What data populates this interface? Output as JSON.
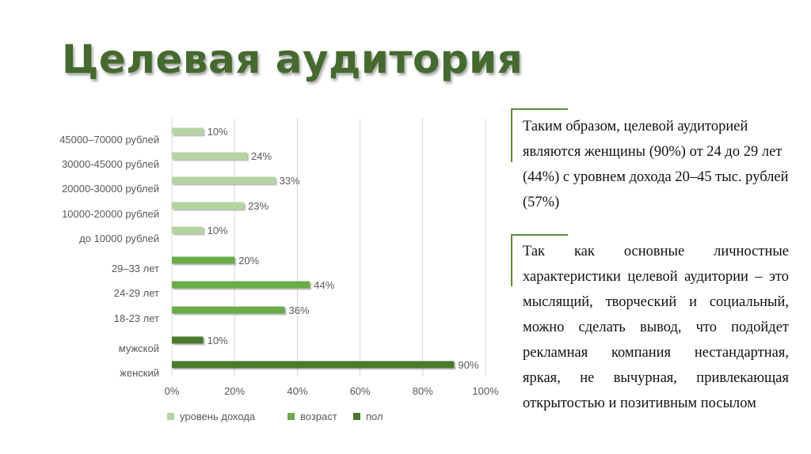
{
  "slide": {
    "title": "Целевая аудитория",
    "summary_text": "Таким образом, целевой аудиторией являются женщины (90%) от 24 до 29 лет (44%) с уровнем дохода 20–45 тыс. рублей (57%)",
    "conclusion_text": "Так как основные личностные характеристики целевой аудитории – это мыслящий, творческий и социальный, можно сделать вывод, что подойдет рекламная компания нестандартная, яркая, не вычурная, привлекающая открытостью и позитивным посылом"
  },
  "colors": {
    "title": "#446a2d",
    "accent_line": "#5b8a3a",
    "income": "#b5d5a0",
    "age": "#6aac4a",
    "gender": "#4a7a2c",
    "grid": "#d9d9d9",
    "label": "#595959"
  },
  "chart_data": {
    "type": "bar",
    "orientation": "horizontal",
    "categories": [
      "45000–70000 рублей",
      "30000-45000 рублей",
      "20000-30000 рублей",
      "10000-20000 рублей",
      "до 10000 рублей",
      "29–33 лет",
      "24-29 лет",
      "18-23 лет",
      "мужской",
      "женский"
    ],
    "values": [
      10,
      24,
      33,
      23,
      10,
      20,
      44,
      36,
      10,
      90
    ],
    "value_labels": [
      "10%",
      "24%",
      "33%",
      "23%",
      "10%",
      "20%",
      "44%",
      "36%",
      "10%",
      "90%"
    ],
    "groups": [
      "уровень дохода",
      "уровень дохода",
      "уровень дохода",
      "уровень дохода",
      "уровень дохода",
      "возраст",
      "возраст",
      "возраст",
      "пол",
      "пол"
    ],
    "series": [
      {
        "name": "уровень дохода",
        "color": "#b5d5a0"
      },
      {
        "name": "возраст",
        "color": "#6aac4a"
      },
      {
        "name": "пол",
        "color": "#4a7a2c"
      }
    ],
    "xlim": [
      0,
      100
    ],
    "x_ticks": [
      0,
      20,
      40,
      60,
      80,
      100
    ],
    "x_tick_labels": [
      "0%",
      "20%",
      "40%",
      "60%",
      "80%",
      "100%"
    ],
    "grid": "vertical",
    "legend_position": "bottom"
  }
}
